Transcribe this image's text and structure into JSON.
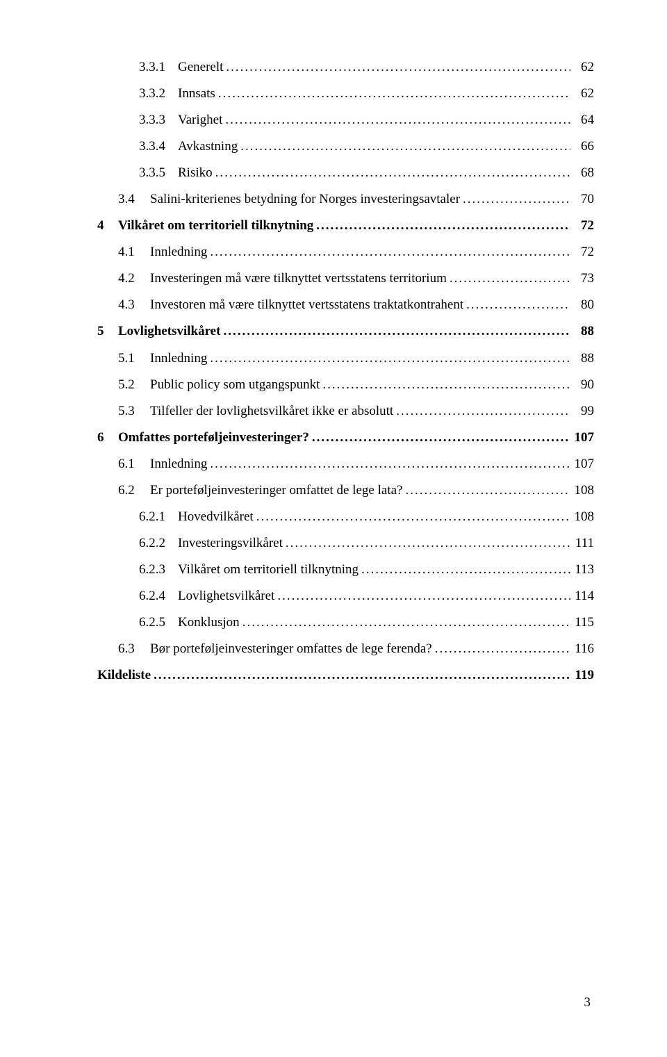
{
  "page_number": "3",
  "toc": {
    "entries": [
      {
        "level": 3,
        "num": "3.3.1",
        "title": "Generelt",
        "page": "62"
      },
      {
        "level": 3,
        "num": "3.3.2",
        "title": "Innsats",
        "page": "62"
      },
      {
        "level": 3,
        "num": "3.3.3",
        "title": "Varighet",
        "page": "64"
      },
      {
        "level": 3,
        "num": "3.3.4",
        "title": "Avkastning",
        "page": "66"
      },
      {
        "level": 3,
        "num": "3.3.5",
        "title": "Risiko",
        "page": "68"
      },
      {
        "level": 2,
        "num": "3.4",
        "title": "Salini-kriterienes betydning for Norges investeringsavtaler",
        "page": "70"
      },
      {
        "level": 1,
        "num": "4",
        "title": "Vilkåret om territoriell tilknytning",
        "page": "72"
      },
      {
        "level": 2,
        "num": "4.1",
        "title": "Innledning",
        "page": "72"
      },
      {
        "level": 2,
        "num": "4.2",
        "title": "Investeringen må være tilknyttet vertsstatens territorium",
        "page": "73"
      },
      {
        "level": 2,
        "num": "4.3",
        "title": "Investoren må være tilknyttet vertsstatens traktatkontrahent",
        "page": "80"
      },
      {
        "level": 1,
        "num": "5",
        "title": "Lovlighetsvilkåret",
        "page": "88"
      },
      {
        "level": 2,
        "num": "5.1",
        "title": "Innledning",
        "page": "88"
      },
      {
        "level": 2,
        "num": "5.2",
        "title": "Public policy som utgangspunkt",
        "page": "90"
      },
      {
        "level": 2,
        "num": "5.3",
        "title": "Tilfeller der lovlighetsvilkåret ikke er absolutt",
        "page": "99"
      },
      {
        "level": 1,
        "num": "6",
        "title": "Omfattes porteføljeinvesteringer?",
        "page": "107"
      },
      {
        "level": 2,
        "num": "6.1",
        "title": "Innledning",
        "page": "107"
      },
      {
        "level": 2,
        "num": "6.2",
        "title": "Er porteføljeinvesteringer omfattet de lege lata?",
        "page": "108"
      },
      {
        "level": 3,
        "num": "6.2.1",
        "title": "Hovedvilkåret",
        "page": "108"
      },
      {
        "level": 3,
        "num": "6.2.2",
        "title": "Investeringsvilkåret",
        "page": "111"
      },
      {
        "level": 3,
        "num": "6.2.3",
        "title": "Vilkåret om territoriell tilknytning",
        "page": "113"
      },
      {
        "level": 3,
        "num": "6.2.4",
        "title": "Lovlighetsvilkåret",
        "page": "114"
      },
      {
        "level": 3,
        "num": "6.2.5",
        "title": "Konklusjon",
        "page": "115"
      },
      {
        "level": 2,
        "num": "6.3",
        "title": "Bør porteføljeinvesteringer omfattes de lege ferenda?",
        "page": "116"
      },
      {
        "level": 0,
        "num": "",
        "title": "Kildeliste",
        "page": "119"
      }
    ]
  }
}
